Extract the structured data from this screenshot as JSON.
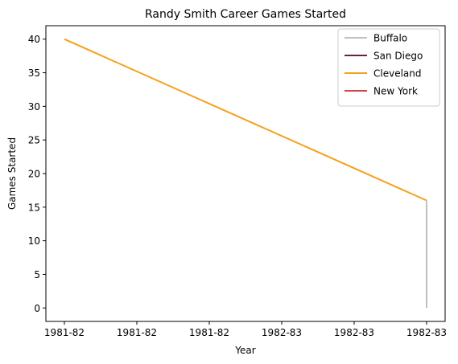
{
  "chart_data": {
    "type": "line",
    "title": "Randy Smith  Career Games Started",
    "xlabel": "Year",
    "ylabel": "Games Started",
    "x_tick_labels": [
      "1981-82",
      "1981-82",
      "1981-82",
      "1982-83",
      "1982-83",
      "1982-83"
    ],
    "x_range": [
      0,
      1
    ],
    "ylim": [
      -2,
      42
    ],
    "y_ticks": [
      0,
      5,
      10,
      15,
      20,
      25,
      30,
      35,
      40
    ],
    "grid": false,
    "legend_position": "top-right",
    "series": [
      {
        "name": "Buffalo",
        "color": "#c0c0c0",
        "x": [
          1,
          1
        ],
        "y": [
          0,
          16
        ]
      },
      {
        "name": "San Diego",
        "color": "#6b2339",
        "x": [],
        "y": []
      },
      {
        "name": "Cleveland",
        "color": "#f7a01d",
        "x": [
          0,
          1
        ],
        "y": [
          40,
          16
        ]
      },
      {
        "name": "New York",
        "color": "#d6404b",
        "x": [],
        "y": []
      }
    ]
  }
}
